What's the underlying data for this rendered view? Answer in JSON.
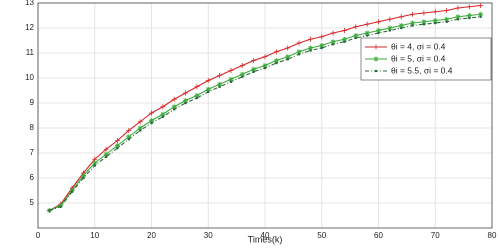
{
  "chart_data": {
    "type": "line",
    "xlabel": "Times(k)",
    "x": [
      2,
      4,
      6,
      8,
      10,
      12,
      14,
      16,
      18,
      20,
      22,
      24,
      26,
      28,
      30,
      32,
      34,
      36,
      38,
      40,
      42,
      44,
      46,
      48,
      50,
      52,
      54,
      56,
      58,
      60,
      62,
      64,
      66,
      68,
      70,
      72,
      74,
      76,
      78
    ],
    "series": [
      {
        "name": "θi = 4, σi = 0.4",
        "color": "#d62728",
        "dash": "none",
        "marker": "plus",
        "values": [
          4.7,
          4.95,
          5.6,
          6.2,
          6.75,
          7.15,
          7.5,
          7.9,
          8.25,
          8.6,
          8.85,
          9.15,
          9.4,
          9.65,
          9.9,
          10.1,
          10.3,
          10.5,
          10.7,
          10.85,
          11.05,
          11.2,
          11.4,
          11.55,
          11.65,
          11.8,
          11.9,
          12.05,
          12.15,
          12.25,
          12.35,
          12.45,
          12.55,
          12.6,
          12.65,
          12.7,
          12.8,
          12.85,
          12.9
        ]
      },
      {
        "name": "θi = 5, σi = 0.4",
        "color": "#3caa3c",
        "dash": "none",
        "marker": "star",
        "values": [
          4.7,
          4.9,
          5.5,
          6.1,
          6.6,
          6.95,
          7.3,
          7.65,
          8.0,
          8.3,
          8.55,
          8.85,
          9.1,
          9.3,
          9.55,
          9.75,
          9.95,
          10.15,
          10.35,
          10.5,
          10.7,
          10.85,
          11.05,
          11.2,
          11.3,
          11.45,
          11.55,
          11.7,
          11.8,
          11.9,
          12.0,
          12.1,
          12.2,
          12.25,
          12.3,
          12.35,
          12.45,
          12.5,
          12.55
        ]
      },
      {
        "name": "θi = 5.5, σi = 0.4",
        "color": "#2a6b3a",
        "dash": "4 2 1 2",
        "marker": "dot",
        "values": [
          4.7,
          4.85,
          5.45,
          6.0,
          6.5,
          6.85,
          7.2,
          7.55,
          7.9,
          8.2,
          8.45,
          8.75,
          9.0,
          9.2,
          9.45,
          9.65,
          9.85,
          10.05,
          10.25,
          10.4,
          10.6,
          10.75,
          10.95,
          11.1,
          11.2,
          11.35,
          11.45,
          11.6,
          11.7,
          11.8,
          11.9,
          12.0,
          12.1,
          12.15,
          12.2,
          12.25,
          12.35,
          12.4,
          12.45
        ]
      }
    ],
    "xlim": [
      0,
      80
    ],
    "xticks": [
      0,
      10,
      20,
      30,
      40,
      50,
      60,
      70,
      80
    ],
    "ylim": [
      4,
      13
    ],
    "yticks": [
      5,
      6,
      7,
      8,
      9,
      10,
      11,
      12,
      13
    ],
    "grid": true,
    "legend": "upper right"
  }
}
